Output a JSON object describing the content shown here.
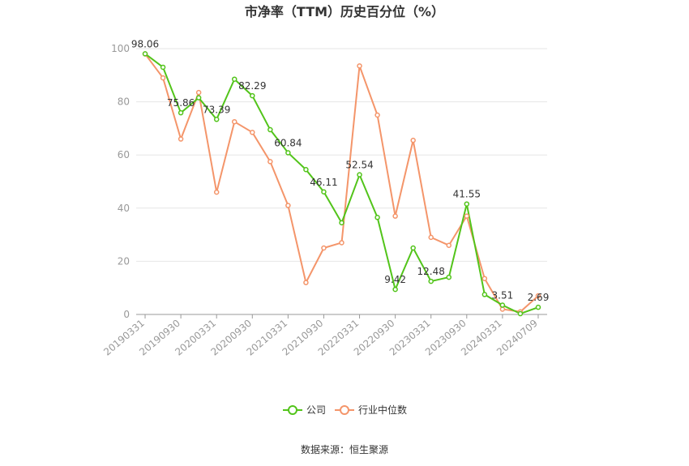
{
  "chart_data": {
    "type": "line",
    "title": "市净率（TTM）历史百分位（%）",
    "ylim": [
      0,
      100
    ],
    "yticks": [
      0,
      20,
      40,
      60,
      80,
      100
    ],
    "x": [
      "20190331",
      "20190630",
      "20190930",
      "20191231",
      "20200331",
      "20200630",
      "20200930",
      "20201231",
      "20210331",
      "20210630",
      "20210930",
      "20211231",
      "20220331",
      "20220630",
      "20220930",
      "20221231",
      "20230331",
      "20230630",
      "20230930",
      "20231231",
      "20240331",
      "20240630",
      "20240709"
    ],
    "xtick_labels": [
      "20190331",
      "20190930",
      "20200331",
      "20200930",
      "20210331",
      "20210930",
      "20220331",
      "20220930",
      "20230331",
      "20230930",
      "20240331",
      "20240709"
    ],
    "series": [
      {
        "name": "公司",
        "color": "#52c41a",
        "values": [
          98.06,
          93.0,
          75.86,
          81.5,
          73.39,
          88.5,
          82.29,
          69.5,
          60.84,
          54.5,
          46.11,
          34.5,
          52.54,
          36.5,
          9.42,
          25.0,
          12.48,
          14.0,
          41.55,
          7.5,
          3.51,
          0.3,
          2.69
        ],
        "labels": {
          "0": "98.06",
          "2": "75.86",
          "4": "73.39",
          "6": "82.29",
          "8": "60.84",
          "10": "46.11",
          "12": "52.54",
          "14": "9.42",
          "16": "12.48",
          "18": "41.55",
          "20": "3.51",
          "22": "2.69"
        }
      },
      {
        "name": "行业中位数",
        "color": "#f4956a",
        "values": [
          98.0,
          89.0,
          66.0,
          83.5,
          46.0,
          72.5,
          68.5,
          57.5,
          41.0,
          12.0,
          25.0,
          27.0,
          93.5,
          75.0,
          37.0,
          65.5,
          29.0,
          26.0,
          37.0,
          13.5,
          2.0,
          1.0,
          7.0
        ]
      }
    ],
    "legend": "bottom-center"
  },
  "source": "数据来源：恒生聚源"
}
